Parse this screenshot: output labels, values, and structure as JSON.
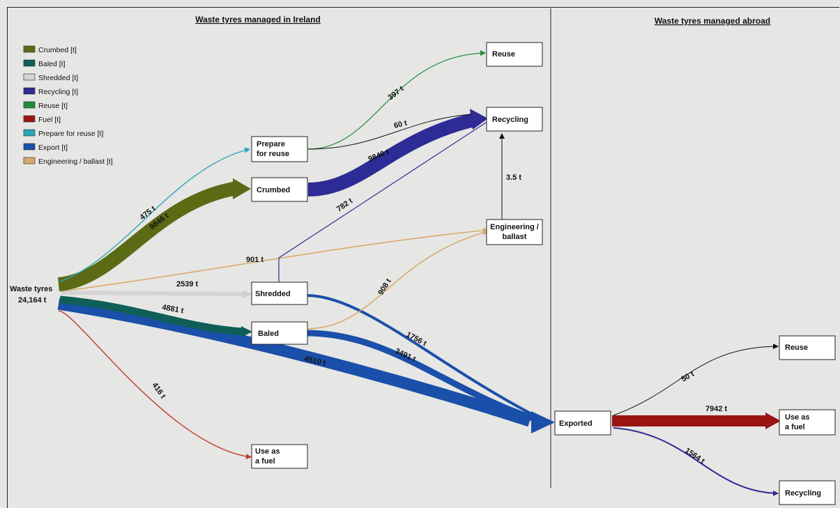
{
  "headers": {
    "ireland": "Waste tyres managed in Ireland",
    "abroad": "Waste tyres managed abroad"
  },
  "legend": [
    {
      "label": "Crumbed [t]",
      "color": "#5b6a15"
    },
    {
      "label": "Baled [t]",
      "color": "#0f5e58"
    },
    {
      "label": "Shredded [t]",
      "color": "#d4d4d8"
    },
    {
      "label": "Recycling [t]",
      "color": "#2e2a96"
    },
    {
      "label": "Reuse [t]",
      "color": "#1f8e3a"
    },
    {
      "label": "Fuel [t]",
      "color": "#9a1414"
    },
    {
      "label": "Prepare for reuse [t]",
      "color": "#2aa6b8"
    },
    {
      "label": "Export [t]",
      "color": "#1a4faa"
    },
    {
      "label": "Engineering / ballast [t]",
      "color": "#d8a96a"
    }
  ],
  "source": {
    "line1": "Waste tyres",
    "line2": "24,164 t"
  },
  "nodes": {
    "reuse_ie": "Reuse",
    "recycling_ie": "Recycling",
    "prepare_line1": "Prepare",
    "prepare_line2": "for reuse",
    "crumbed": "Crumbed",
    "engineering_line1": "Engineering /",
    "engineering_line2": "ballast",
    "shredded": "Shredded",
    "baled": "Baled",
    "fuel_ie_line1": "Use as",
    "fuel_ie_line2": "a fuel",
    "exported": "Exported",
    "reuse_abroad": "Reuse",
    "fuel_abroad_line1": "Use as",
    "fuel_abroad_line2": "a fuel",
    "recycling_abroad": "Recycling"
  },
  "flow_labels": {
    "prepare": "475 t",
    "crumbed": "9846 t",
    "engineering_direct": "901 t",
    "shredded": "2539 t",
    "baled": "4881 t",
    "export_direct": "4510 t",
    "fuel_ie": "416 t",
    "prepare_reuse": "397 t",
    "prepare_recycling": "60 t",
    "crumbed_recycling": "9846 t",
    "shredded_recycling": "782 t",
    "engineering_recycling": "3.5 t",
    "baled_engineering": "908 t",
    "shredded_export": "1756 t",
    "baled_export": "3491 t",
    "export_reuse": "50 t",
    "export_fuel": "7942 t",
    "export_recycling": "1564 t"
  },
  "flows": [
    {
      "from": "Waste tyres",
      "to": "Prepare for reuse",
      "value": 475,
      "type": "Prepare for reuse"
    },
    {
      "from": "Waste tyres",
      "to": "Crumbed",
      "value": 9846,
      "type": "Crumbed"
    },
    {
      "from": "Waste tyres",
      "to": "Engineering / ballast",
      "value": 901,
      "type": "Engineering / ballast"
    },
    {
      "from": "Waste tyres",
      "to": "Shredded",
      "value": 2539,
      "type": "Shredded"
    },
    {
      "from": "Waste tyres",
      "to": "Baled",
      "value": 4881,
      "type": "Baled"
    },
    {
      "from": "Waste tyres",
      "to": "Exported",
      "value": 4510,
      "type": "Export"
    },
    {
      "from": "Waste tyres",
      "to": "Use as a fuel",
      "value": 416,
      "type": "Fuel"
    },
    {
      "from": "Prepare for reuse",
      "to": "Reuse",
      "value": 397,
      "type": "Reuse"
    },
    {
      "from": "Prepare for reuse",
      "to": "Recycling",
      "value": 60,
      "type": "Recycling"
    },
    {
      "from": "Crumbed",
      "to": "Recycling",
      "value": 9846,
      "type": "Recycling"
    },
    {
      "from": "Shredded",
      "to": "Recycling",
      "value": 782,
      "type": "Recycling"
    },
    {
      "from": "Engineering / ballast",
      "to": "Recycling",
      "value": 3.5,
      "type": "Recycling"
    },
    {
      "from": "Baled",
      "to": "Engineering / ballast",
      "value": 908,
      "type": "Engineering / ballast"
    },
    {
      "from": "Shredded",
      "to": "Exported",
      "value": 1756,
      "type": "Export"
    },
    {
      "from": "Baled",
      "to": "Exported",
      "value": 3491,
      "type": "Export"
    },
    {
      "from": "Exported",
      "to": "Reuse",
      "value": 50,
      "type": "Reuse"
    },
    {
      "from": "Exported",
      "to": "Use as a fuel",
      "value": 7942,
      "type": "Fuel"
    },
    {
      "from": "Exported",
      "to": "Recycling",
      "value": 1564,
      "type": "Recycling"
    }
  ]
}
